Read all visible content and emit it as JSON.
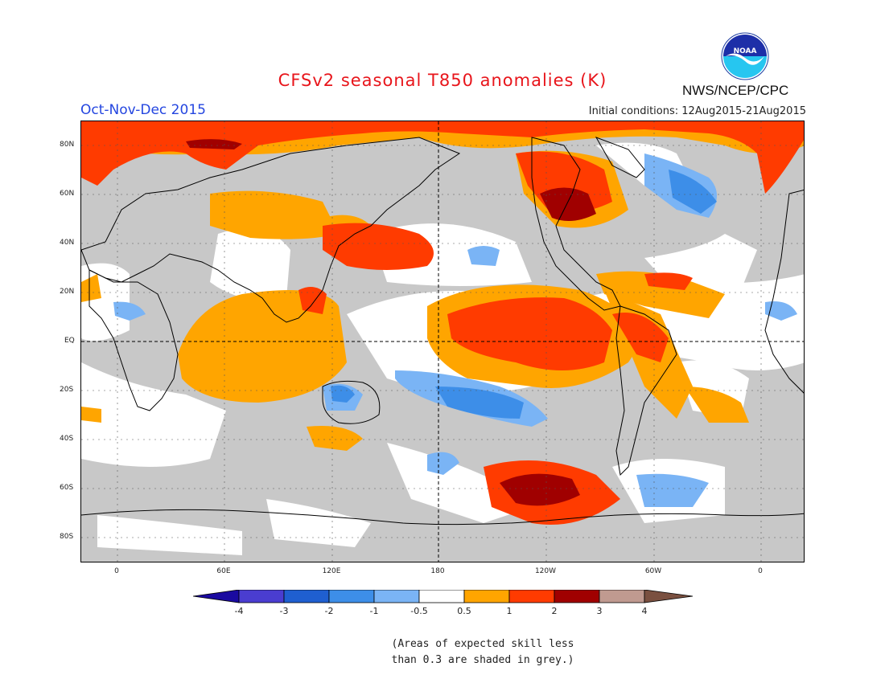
{
  "header": {
    "title": "CFSv2 seasonal T850 anomalies (K)",
    "agency": "NWS/NCEP/CPC",
    "logo_text": "NOAA",
    "season": "Oct-Nov-Dec 2015",
    "initial_conditions": "Initial conditions: 12Aug2015-21Aug2015"
  },
  "map": {
    "lat_labels": [
      "80N",
      "60N",
      "40N",
      "20N",
      "EQ",
      "20S",
      "40S",
      "60S",
      "80S"
    ],
    "lon_labels": [
      "0",
      "60E",
      "120E",
      "180",
      "120W",
      "60W",
      "0"
    ],
    "colors": {
      "grey_mask": "#c8c8c8",
      "neutral": "#ffffff",
      "warm_1": "#ffa500",
      "warm_2": "#ff3b00",
      "warm_3": "#a00000",
      "cool_1": "#7ab4f5",
      "cool_2": "#3d8ee8"
    }
  },
  "colorbar": {
    "labels": [
      "-4",
      "-3",
      "-2",
      "-1",
      "-0.5",
      "0.5",
      "1",
      "2",
      "3",
      "4"
    ],
    "colors": [
      "#1a0aa0",
      "#4a3dd0",
      "#1f5fd0",
      "#3d8ee8",
      "#7ab4f5",
      "#ffffff",
      "#ffa500",
      "#ff3b00",
      "#a00000",
      "#c09a90",
      "#7a5040"
    ]
  },
  "note": {
    "line1": "(Areas of expected skill less",
    "line2": "than 0.3 are shaded in grey.)"
  }
}
